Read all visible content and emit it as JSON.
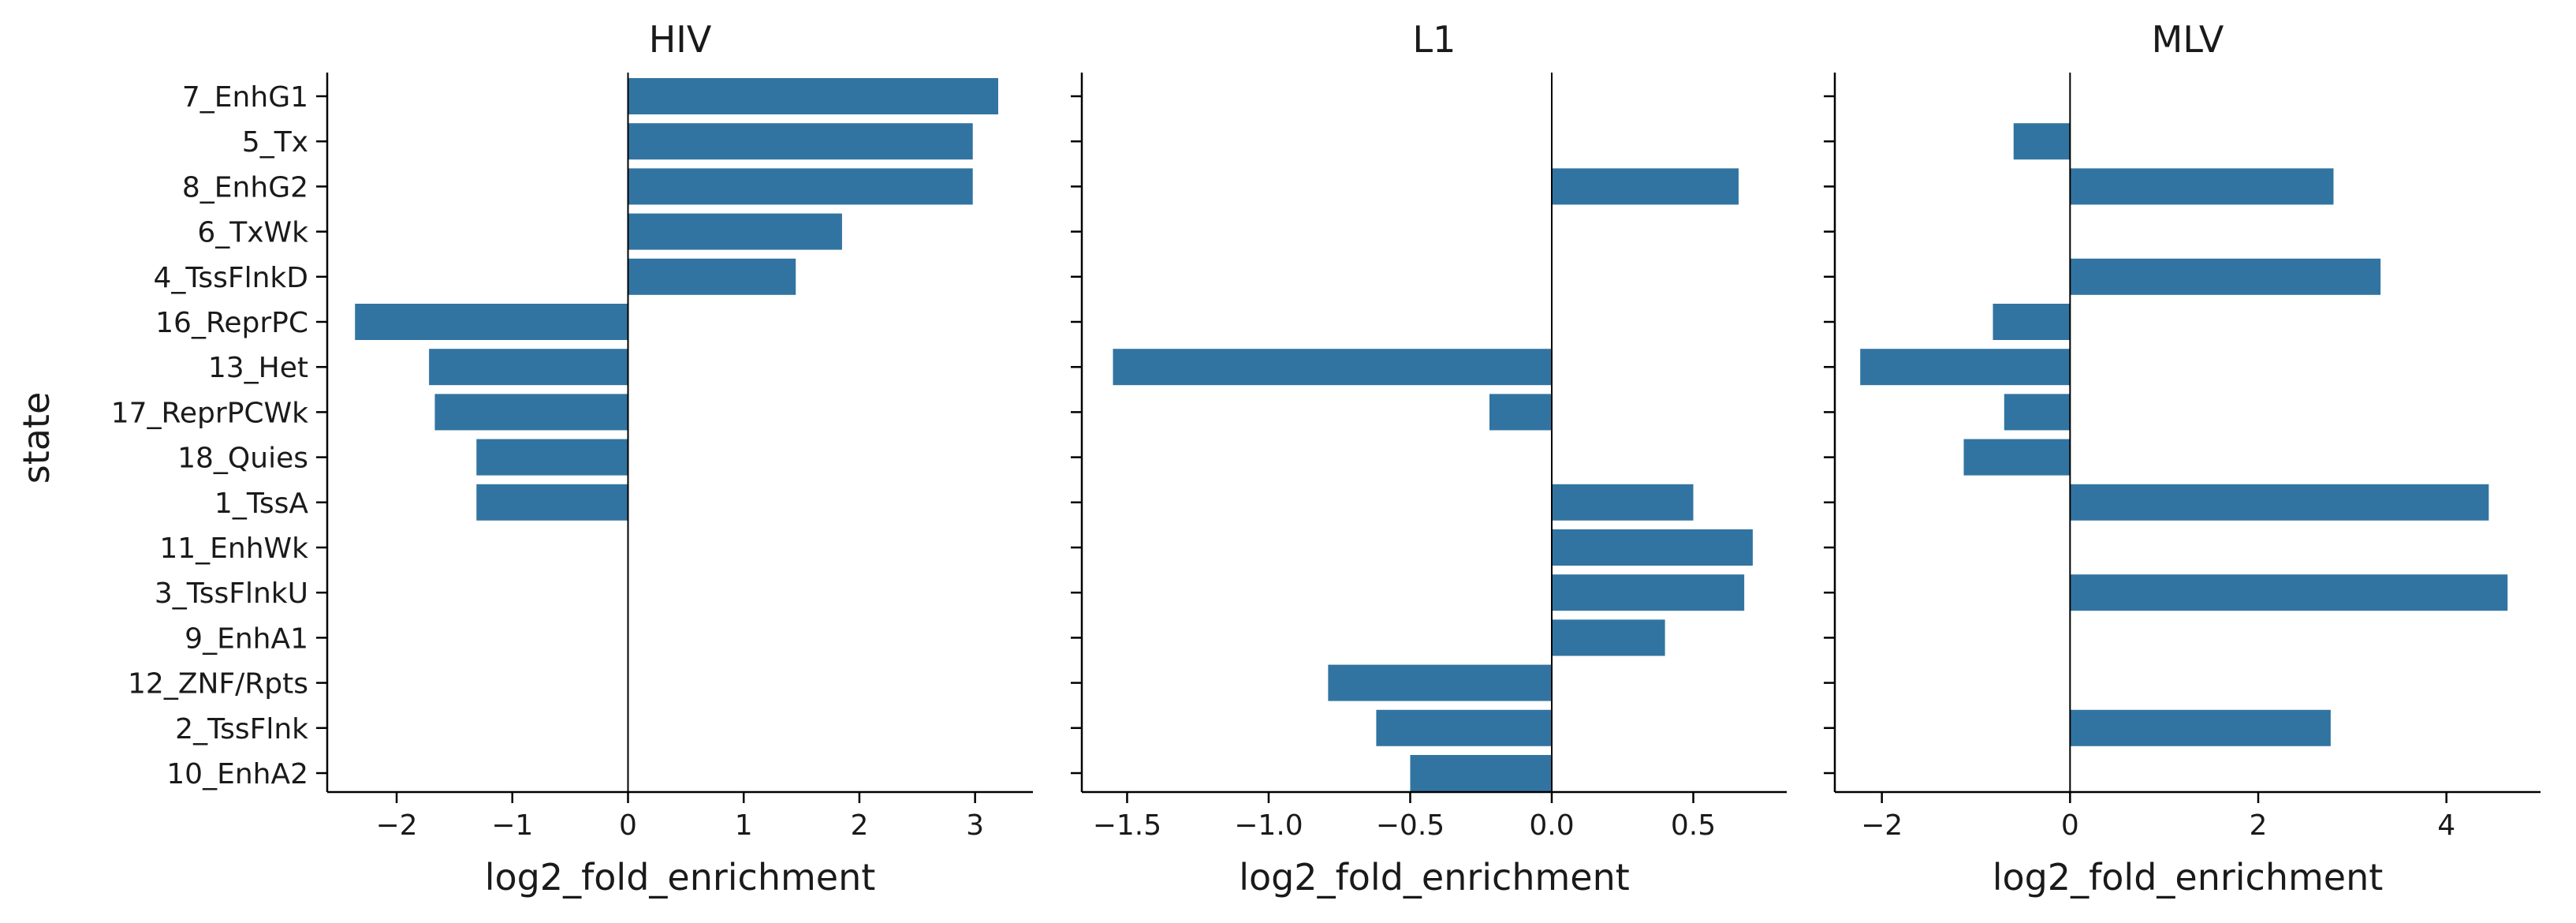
{
  "figure": {
    "ylabel": "state",
    "xlabel": "log2_fold_enrichment",
    "bar_color": "#3274a1"
  },
  "chart_data": [
    {
      "type": "bar",
      "orientation": "horizontal",
      "title": "HIV",
      "xlabel": "log2_fold_enrichment",
      "ylabel": "state",
      "categories": [
        "7_EnhG1",
        "5_Tx",
        "8_EnhG2",
        "6_TxWk",
        "4_TssFlnkD",
        "16_ReprPC",
        "13_Het",
        "17_ReprPCWk",
        "18_Quies",
        "1_TssA",
        "11_EnhWk",
        "3_TssFlnkU",
        "9_EnhA1",
        "12_ZNF/Rpts",
        "2_TssFlnk",
        "10_EnhA2"
      ],
      "values": [
        3.2,
        2.98,
        2.98,
        1.85,
        1.45,
        -2.36,
        -1.72,
        -1.67,
        -1.31,
        -1.31,
        null,
        null,
        null,
        null,
        null,
        null
      ],
      "xlim": [
        -2.6,
        3.5
      ],
      "xticks": [
        -2,
        -1,
        0,
        1,
        2,
        3
      ],
      "xtick_labels": [
        "−2",
        "−1",
        "0",
        "1",
        "2",
        "3"
      ],
      "grid": false
    },
    {
      "type": "bar",
      "orientation": "horizontal",
      "title": "L1",
      "xlabel": "log2_fold_enrichment",
      "ylabel": "",
      "categories": [
        "7_EnhG1",
        "5_Tx",
        "8_EnhG2",
        "6_TxWk",
        "4_TssFlnkD",
        "16_ReprPC",
        "13_Het",
        "17_ReprPCWk",
        "18_Quies",
        "1_TssA",
        "11_EnhWk",
        "3_TssFlnkU",
        "9_EnhA1",
        "12_ZNF/Rpts",
        "2_TssFlnk",
        "10_EnhA2"
      ],
      "values": [
        null,
        null,
        0.66,
        null,
        null,
        null,
        -1.55,
        -0.22,
        null,
        0.5,
        0.71,
        0.68,
        0.4,
        -0.79,
        -0.62,
        -0.5
      ],
      "xlim": [
        -1.66,
        0.83
      ],
      "xticks": [
        -1.5,
        -1.0,
        -0.5,
        0.0,
        0.5
      ],
      "xtick_labels": [
        "−1.5",
        "−1.0",
        "−0.5",
        "0.0",
        "0.5"
      ],
      "grid": false
    },
    {
      "type": "bar",
      "orientation": "horizontal",
      "title": "MLV",
      "xlabel": "log2_fold_enrichment",
      "ylabel": "",
      "categories": [
        "7_EnhG1",
        "5_Tx",
        "8_EnhG2",
        "6_TxWk",
        "4_TssFlnkD",
        "16_ReprPC",
        "13_Het",
        "17_ReprPCWk",
        "18_Quies",
        "1_TssA",
        "11_EnhWk",
        "3_TssFlnkU",
        "9_EnhA1",
        "12_ZNF/Rpts",
        "2_TssFlnk",
        "10_EnhA2"
      ],
      "values": [
        null,
        -0.6,
        2.8,
        null,
        3.3,
        -0.82,
        -2.23,
        -0.7,
        -1.13,
        4.45,
        null,
        4.65,
        null,
        null,
        2.77,
        null
      ],
      "xlim": [
        -2.5,
        5.0
      ],
      "xticks": [
        -2,
        0,
        2,
        4
      ],
      "xtick_labels": [
        "−2",
        "0",
        "2",
        "4"
      ],
      "grid": false
    }
  ]
}
